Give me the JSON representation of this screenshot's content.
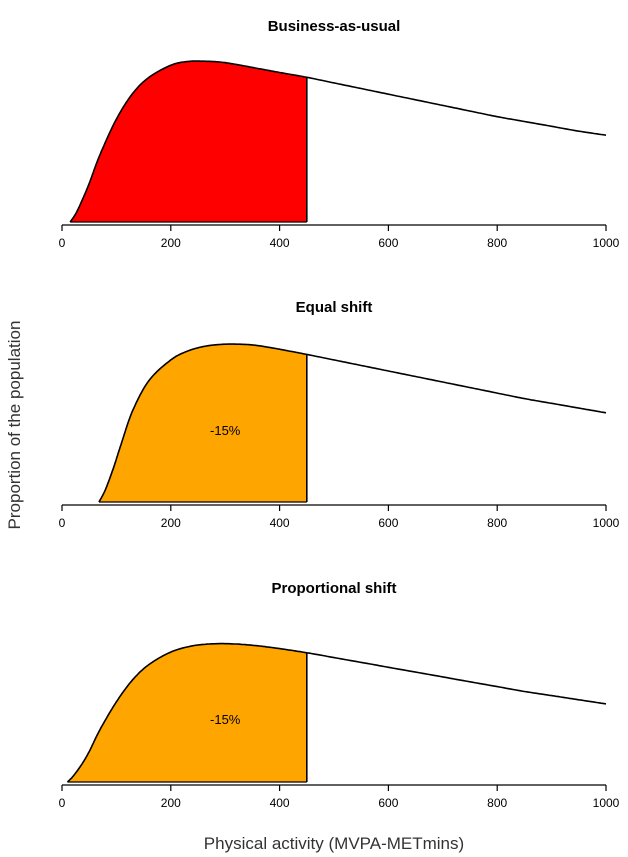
{
  "ylabel": "Proportion of the population",
  "xlabel": "Physical activity (MVPA-METmins)",
  "chart_data": [
    {
      "type": "area",
      "title": "Business-as-usual",
      "xlim": [
        0,
        1000
      ],
      "ylim": [
        0,
        1.02
      ],
      "xticks": [
        0,
        200,
        400,
        600,
        800,
        1000
      ],
      "shade_color": "#ff0000",
      "shade_range": [
        0,
        450
      ],
      "annotation": "",
      "x": [
        15,
        25,
        35,
        50,
        70,
        100,
        130,
        160,
        200,
        230,
        260,
        290,
        320,
        360,
        400,
        450,
        500,
        550,
        600,
        650,
        700,
        750,
        800,
        850,
        900,
        950,
        1000
      ],
      "y": [
        0.0,
        0.05,
        0.12,
        0.24,
        0.42,
        0.64,
        0.8,
        0.9,
        0.975,
        0.998,
        1.0,
        0.995,
        0.98,
        0.955,
        0.93,
        0.9,
        0.865,
        0.83,
        0.795,
        0.76,
        0.725,
        0.69,
        0.655,
        0.625,
        0.595,
        0.565,
        0.54
      ]
    },
    {
      "type": "area",
      "title": "Equal shift",
      "xlim": [
        0,
        1000
      ],
      "ylim": [
        0,
        1.02
      ],
      "xticks": [
        0,
        200,
        400,
        600,
        800,
        1000
      ],
      "shade_color": "#ffa500",
      "shade_range": [
        0,
        450
      ],
      "annotation": "-15%",
      "x": [
        68,
        80,
        95,
        110,
        130,
        160,
        200,
        230,
        260,
        290,
        320,
        350,
        380,
        420,
        450,
        500,
        550,
        600,
        650,
        700,
        750,
        800,
        850,
        900,
        950,
        1000
      ],
      "y": [
        0.0,
        0.08,
        0.22,
        0.38,
        0.58,
        0.77,
        0.9,
        0.955,
        0.985,
        0.998,
        1.0,
        0.995,
        0.98,
        0.955,
        0.935,
        0.9,
        0.865,
        0.83,
        0.795,
        0.76,
        0.725,
        0.69,
        0.655,
        0.625,
        0.595,
        0.565
      ]
    },
    {
      "type": "area",
      "title": "Proportional shift",
      "xlim": [
        0,
        1000
      ],
      "ylim": [
        0,
        1.02
      ],
      "xticks": [
        0,
        200,
        400,
        600,
        800,
        1000
      ],
      "shade_color": "#ffa500",
      "shade_range": [
        0,
        450
      ],
      "annotation": "-15%",
      "x": [
        10,
        20,
        35,
        50,
        70,
        100,
        130,
        160,
        200,
        240,
        280,
        320,
        360,
        400,
        450,
        500,
        550,
        600,
        650,
        700,
        750,
        800,
        850,
        900,
        950,
        1000
      ],
      "y": [
        0.0,
        0.04,
        0.12,
        0.22,
        0.38,
        0.58,
        0.74,
        0.85,
        0.94,
        0.985,
        1.0,
        0.998,
        0.985,
        0.965,
        0.935,
        0.9,
        0.865,
        0.83,
        0.795,
        0.76,
        0.725,
        0.69,
        0.655,
        0.625,
        0.595,
        0.565
      ]
    }
  ]
}
